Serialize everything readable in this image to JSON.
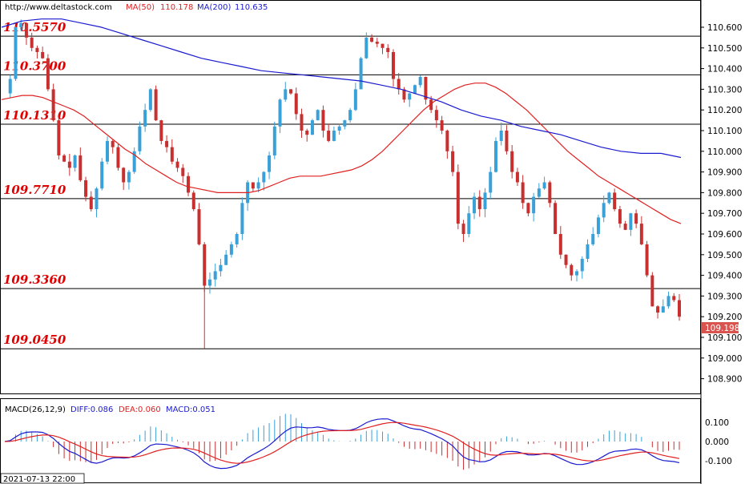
{
  "header": {
    "url": "http://www.deltastock.com",
    "ma50_label": "MA(50)",
    "ma50_value": "110.178",
    "ma200_label": "MA(200)",
    "ma200_value": "110.635"
  },
  "colors": {
    "ma50": "#e02020",
    "ma200": "#1a1ad0",
    "bull": "#3aa0d8",
    "bear": "#c83030",
    "macd_hist_pos": "#3aa0d8",
    "macd_hist_neg": "#c83030",
    "level": "#e00000",
    "price_badge_bg": "#d9534f"
  },
  "current_price": "109.198",
  "date_label": "2021-07-13 22:00",
  "macd": {
    "title": "MACD(26,12,9)",
    "diff_label": "DIFF:0.086",
    "dea_label": "DEA:0.060",
    "macd_label": "MACD:0.051",
    "yticks": [
      "0.100",
      "0.000",
      "-0.100"
    ]
  },
  "chart_data": {
    "type": "candlestick",
    "ylim": [
      108.8,
      110.7
    ],
    "yticks": [
      "110.600",
      "110.500",
      "110.400",
      "110.300",
      "110.200",
      "110.100",
      "110.000",
      "109.900",
      "109.800",
      "109.700",
      "109.600",
      "109.500",
      "109.400",
      "109.300",
      "109.200",
      "109.100",
      "109.000",
      "108.900"
    ],
    "levels": [
      {
        "label": "110.5570",
        "value": 110.557
      },
      {
        "label": "110.3700",
        "value": 110.37
      },
      {
        "label": "110.1310",
        "value": 110.131
      },
      {
        "label": "109.7710",
        "value": 109.771
      },
      {
        "label": "109.3360",
        "value": 109.336
      },
      {
        "label": "109.0450",
        "value": 109.045
      }
    ],
    "price_path": [
      110.28,
      110.35,
      110.6,
      110.62,
      110.55,
      110.5,
      110.48,
      110.45,
      110.3,
      110.15,
      109.98,
      109.95,
      109.92,
      109.98,
      109.86,
      109.78,
      109.72,
      109.82,
      109.95,
      110.05,
      110.02,
      109.92,
      109.85,
      109.9,
      110.0,
      110.12,
      110.2,
      110.3,
      110.15,
      110.05,
      110.02,
      109.95,
      109.92,
      109.88,
      109.8,
      109.72,
      109.55,
      109.35,
      109.38,
      109.42,
      109.45,
      109.5,
      109.55,
      109.6,
      109.75,
      109.85,
      109.82,
      109.85,
      109.9,
      109.98,
      110.12,
      110.25,
      110.3,
      110.28,
      110.18,
      110.1,
      110.08,
      110.15,
      110.2,
      110.1,
      110.05,
      110.1,
      110.12,
      110.15,
      110.2,
      110.3,
      110.45,
      110.55,
      110.53,
      110.52,
      110.5,
      110.48,
      110.35,
      110.3,
      110.25,
      110.28,
      110.32,
      110.36,
      110.25,
      110.2,
      110.15,
      110.1,
      110.0,
      109.9,
      109.65,
      109.6,
      109.7,
      109.78,
      109.72,
      109.8,
      109.9,
      110.05,
      110.1,
      110.0,
      109.9,
      109.85,
      109.75,
      109.7,
      109.78,
      109.82,
      109.85,
      109.75,
      109.6,
      109.5,
      109.45,
      109.4,
      109.42,
      109.48,
      109.55,
      109.6,
      109.68,
      109.75,
      109.8,
      109.72,
      109.65,
      109.62,
      109.7,
      109.65,
      109.55,
      109.4,
      109.25,
      109.22,
      109.25,
      109.3,
      109.28,
      109.2
    ],
    "ma50": [
      110.25,
      110.26,
      110.27,
      110.27,
      110.26,
      110.24,
      110.22,
      110.2,
      110.17,
      110.13,
      110.09,
      110.05,
      110.01,
      109.98,
      109.94,
      109.91,
      109.88,
      109.85,
      109.83,
      109.82,
      109.81,
      109.8,
      109.8,
      109.8,
      109.8,
      109.81,
      109.83,
      109.85,
      109.87,
      109.88,
      109.88,
      109.88,
      109.89,
      109.9,
      109.91,
      109.93,
      109.96,
      110.0,
      110.05,
      110.1,
      110.15,
      110.2,
      110.24,
      110.27,
      110.3,
      110.32,
      110.33,
      110.33,
      110.31,
      110.28,
      110.24,
      110.2,
      110.15,
      110.1,
      110.05,
      110.0,
      109.96,
      109.92,
      109.88,
      109.85,
      109.82,
      109.79,
      109.76,
      109.73,
      109.7,
      109.67,
      109.65
    ],
    "ma200": [
      110.6,
      110.63,
      110.64,
      110.64,
      110.62,
      110.6,
      110.57,
      110.54,
      110.51,
      110.48,
      110.45,
      110.43,
      110.41,
      110.39,
      110.38,
      110.37,
      110.36,
      110.35,
      110.34,
      110.32,
      110.3,
      110.27,
      110.24,
      110.2,
      110.17,
      110.15,
      110.12,
      110.1,
      110.08,
      110.05,
      110.02,
      110.0,
      109.99,
      109.99,
      109.97
    ]
  }
}
